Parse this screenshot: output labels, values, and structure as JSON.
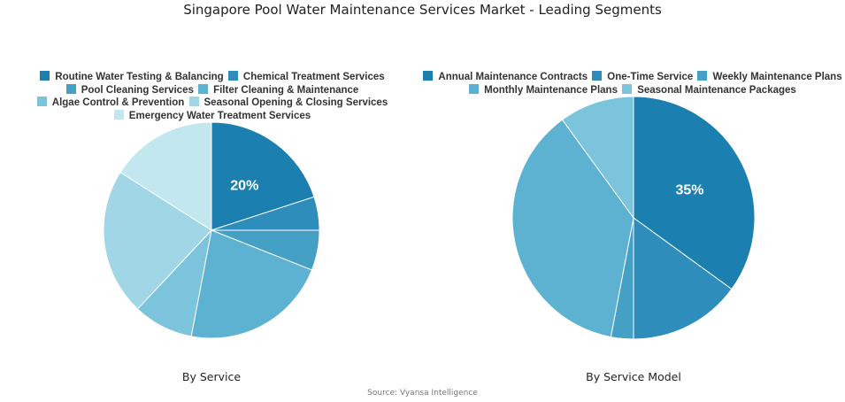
{
  "title": "Singapore Pool Water Maintenance Services Market - Leading Segments",
  "source": "Source: Vyansa Intelligence",
  "chart_data": [
    {
      "type": "pie",
      "subtitle": "By Service",
      "categories": [
        "Routine Water Testing & Balancing",
        "Chemical Treatment Services",
        "Pool Cleaning Services",
        "Filter Cleaning & Maintenance",
        "Algae Control & Prevention",
        "Seasonal Opening & Closing Services",
        "Emergency Water Treatment Services"
      ],
      "values": [
        20,
        5,
        6,
        22,
        9,
        22,
        16
      ],
      "colors": [
        "#1b7fb0",
        "#2e8dbb",
        "#45a0c6",
        "#5db1d1",
        "#7cc4dc",
        "#a0d6e5",
        "#c3e7ef"
      ],
      "data_labels": [
        "20%",
        "",
        "",
        "",
        "",
        "",
        ""
      ],
      "legend": "top"
    },
    {
      "type": "pie",
      "subtitle": "By Service Model",
      "categories": [
        "Annual Maintenance Contracts",
        "One-Time Service",
        "Weekly Maintenance Plans",
        "Monthly Maintenance Plans",
        "Seasonal Maintenance Packages"
      ],
      "values": [
        35,
        15,
        3,
        37,
        10
      ],
      "colors": [
        "#1b7fb0",
        "#2e8dbb",
        "#45a0c6",
        "#5db1d1",
        "#7cc4dc"
      ],
      "data_labels": [
        "35%",
        "",
        "",
        "",
        ""
      ],
      "legend": "top"
    }
  ]
}
